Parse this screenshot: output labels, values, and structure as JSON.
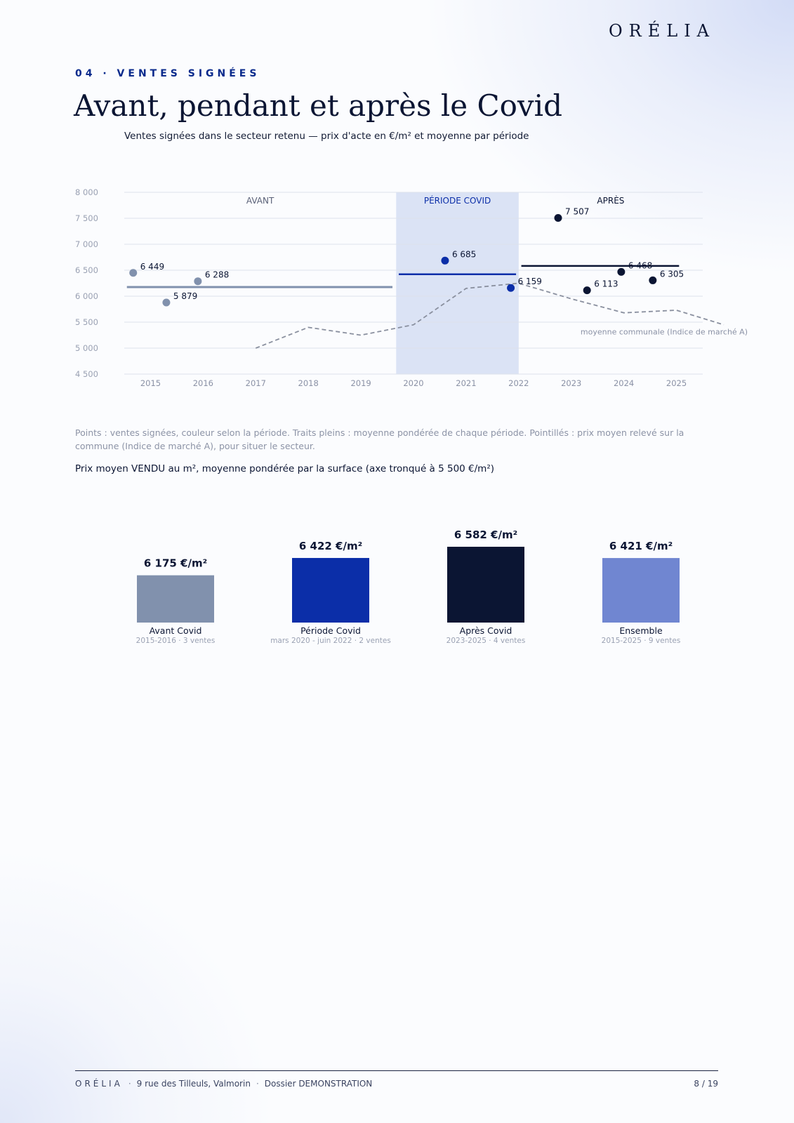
{
  "header": {
    "logo": "ORÉLIA"
  },
  "section": {
    "eyebrow": "04 · VENTES SIGNÉES",
    "title": "Avant, pendant et après le Covid",
    "subtitle": "Ventes signées dans le secteur retenu — prix d'acte en €/m² et moyenne par période"
  },
  "note": "Points : ventes signées, couleur selon la période. Traits pleins : moyenne pondérée de chaque période. Pointillés : prix moyen relevé sur la commune (Indice de marché A), pour situer le secteur.",
  "bar_section_title": "Prix moyen VENDU au m², moyenne pondérée par la surface (axe tronqué à 5 500 €/m²)",
  "colors": {
    "avant": "#8191ad",
    "covid": "#0b2ea8",
    "apres": "#0b1533",
    "ensemble": "#7086d1",
    "covid_band": "#dbe3f5",
    "market_line": "#8a909f"
  },
  "chart_data": [
    {
      "type": "scatter",
      "title": "",
      "y_ticks": [
        "8 000",
        "7 500",
        "7 000",
        "6 500",
        "6 000",
        "5 500",
        "5 000",
        "4 500"
      ],
      "ylim": [
        4500,
        8000
      ],
      "x_ticks": [
        "2015",
        "2016",
        "2017",
        "2018",
        "2019",
        "2020",
        "2021",
        "2022",
        "2023",
        "2024",
        "2025"
      ],
      "xlim": [
        2014.5,
        2025.5
      ],
      "grid": true,
      "period_labels": [
        "AVANT",
        "PÉRIODE COVID",
        "APRÈS"
      ],
      "covid_band": [
        2019.67,
        2022.0
      ],
      "series": [
        {
          "name": "AVANT",
          "points": [
            {
              "x": 2014.67,
              "y": 6449,
              "label": "6 449"
            },
            {
              "x": 2015.3,
              "y": 5879,
              "label": "5 879"
            },
            {
              "x": 2015.9,
              "y": 6288,
              "label": "6 288"
            }
          ]
        },
        {
          "name": "PÉRIODE COVID",
          "points": [
            {
              "x": 2020.6,
              "y": 6685,
              "label": "6 685"
            },
            {
              "x": 2021.85,
              "y": 6159,
              "label": "6 159"
            }
          ]
        },
        {
          "name": "APRÈS",
          "points": [
            {
              "x": 2022.75,
              "y": 7507,
              "label": "7 507"
            },
            {
              "x": 2023.3,
              "y": 6113,
              "label": "6 113"
            },
            {
              "x": 2023.95,
              "y": 6468,
              "label": "6 468"
            },
            {
              "x": 2024.55,
              "y": 6305,
              "label": "6 305"
            }
          ]
        }
      ],
      "period_averages": [
        {
          "period": "AVANT",
          "x": [
            2014.55,
            2019.6
          ],
          "y": 6175
        },
        {
          "period": "PÉRIODE COVID",
          "x": [
            2019.72,
            2021.95
          ],
          "y": 6422
        },
        {
          "period": "APRÈS",
          "x": [
            2022.05,
            2025.05
          ],
          "y": 6582
        }
      ],
      "market_line": {
        "name": "moyenne communale (Indice de marché A)",
        "x": [
          2017,
          2018,
          2019,
          2020,
          2021,
          2022,
          2023,
          2024,
          2025,
          2025.9
        ],
        "y": [
          5000,
          5400,
          5250,
          5450,
          6150,
          6250,
          5950,
          5680,
          5730,
          5450
        ]
      }
    },
    {
      "type": "bar",
      "title": "Prix moyen VENDU au m², moyenne pondérée par la surface (axe tronqué à 5 500 €/m²)",
      "ylim": [
        5500,
        6582
      ],
      "categories": [
        "Avant Covid",
        "Période Covid",
        "Après Covid",
        "Ensemble"
      ],
      "sublabels": [
        "2015-2016 · 3 ventes",
        "mars 2020 - juin 2022 · 2 ventes",
        "2023-2025 · 4 ventes",
        "2015-2025 · 9 ventes"
      ],
      "values": [
        6175,
        6422,
        6582,
        6421
      ],
      "value_labels": [
        "6 175 €/m²",
        "6 422 €/m²",
        "6 582 €/m²",
        "6 421 €/m²"
      ]
    }
  ],
  "footer": {
    "brand": "ORÉLIA",
    "address": "9 rue des Tilleuls, Valmorin",
    "dossier": "Dossier DEMONSTRATION",
    "page": "8 / 19"
  }
}
